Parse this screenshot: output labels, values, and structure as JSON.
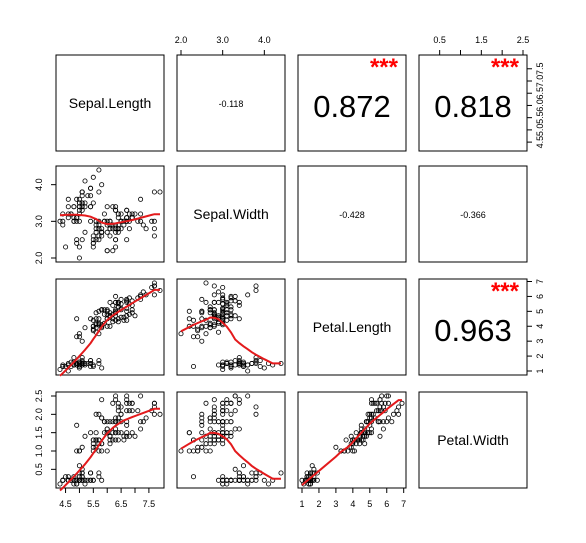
{
  "chart_data": {
    "type": "scatter",
    "variables": [
      "Sepal.Length",
      "Sepal.Width",
      "Petal.Length",
      "Petal.Width"
    ],
    "ranges": [
      [
        4.3,
        7.9
      ],
      [
        2.0,
        4.4
      ],
      [
        1.0,
        6.9
      ],
      [
        0.1,
        2.5
      ]
    ],
    "axis_ticks": {
      "Sepal.Length": [
        "4.5",
        "5.5",
        "6.5",
        "7.5"
      ],
      "Sepal.Width": [
        "2.0",
        "3.0",
        "4.0"
      ],
      "Petal.Length": [
        "1",
        "2",
        "3",
        "4",
        "5",
        "6",
        "7"
      ],
      "Petal.Width": [
        "0.5",
        "1.5",
        "2.5"
      ]
    },
    "axis_ticks_minor": {
      "Sepal.Length": [
        "4.5",
        "5.0",
        "5.5",
        "6.0",
        "6.5",
        "7.0",
        "7.5"
      ],
      "Petal.Width": [
        "0.5",
        "1.0",
        "1.5",
        "2.0",
        "2.5"
      ]
    },
    "correlations": [
      {
        "row": 0,
        "col": 1,
        "label": "-0.118",
        "stars": "",
        "big": false
      },
      {
        "row": 0,
        "col": 2,
        "label": "0.872",
        "stars": "***",
        "big": true
      },
      {
        "row": 0,
        "col": 3,
        "label": "0.818",
        "stars": "***",
        "big": true
      },
      {
        "row": 1,
        "col": 2,
        "label": "-0.428",
        "stars": "",
        "big": false
      },
      {
        "row": 1,
        "col": 3,
        "label": "-0.366",
        "stars": "",
        "big": false
      },
      {
        "row": 2,
        "col": 3,
        "label": "0.963",
        "stars": "***",
        "big": true
      }
    ],
    "points": [
      [
        5.1,
        3.5,
        1.4,
        0.2
      ],
      [
        4.9,
        3.0,
        1.4,
        0.2
      ],
      [
        4.7,
        3.2,
        1.3,
        0.2
      ],
      [
        4.6,
        3.1,
        1.5,
        0.2
      ],
      [
        5.0,
        3.6,
        1.4,
        0.2
      ],
      [
        5.4,
        3.9,
        1.7,
        0.4
      ],
      [
        4.6,
        3.4,
        1.4,
        0.3
      ],
      [
        5.0,
        3.4,
        1.5,
        0.2
      ],
      [
        4.4,
        2.9,
        1.4,
        0.2
      ],
      [
        4.9,
        3.1,
        1.5,
        0.1
      ],
      [
        5.4,
        3.7,
        1.5,
        0.2
      ],
      [
        4.8,
        3.4,
        1.6,
        0.2
      ],
      [
        4.8,
        3.0,
        1.4,
        0.1
      ],
      [
        4.3,
        3.0,
        1.1,
        0.1
      ],
      [
        5.8,
        4.0,
        1.2,
        0.2
      ],
      [
        5.7,
        4.4,
        1.5,
        0.4
      ],
      [
        5.4,
        3.9,
        1.3,
        0.4
      ],
      [
        5.1,
        3.5,
        1.4,
        0.3
      ],
      [
        5.7,
        3.8,
        1.7,
        0.3
      ],
      [
        5.1,
        3.8,
        1.5,
        0.3
      ],
      [
        5.4,
        3.4,
        1.7,
        0.2
      ],
      [
        5.1,
        3.7,
        1.5,
        0.4
      ],
      [
        4.6,
        3.6,
        1.0,
        0.2
      ],
      [
        5.1,
        3.3,
        1.7,
        0.5
      ],
      [
        4.8,
        3.4,
        1.9,
        0.2
      ],
      [
        5.0,
        3.0,
        1.6,
        0.2
      ],
      [
        5.0,
        3.4,
        1.6,
        0.4
      ],
      [
        5.2,
        3.5,
        1.5,
        0.2
      ],
      [
        5.2,
        3.4,
        1.4,
        0.2
      ],
      [
        4.7,
        3.2,
        1.6,
        0.2
      ],
      [
        4.8,
        3.1,
        1.6,
        0.2
      ],
      [
        5.4,
        3.4,
        1.5,
        0.4
      ],
      [
        5.2,
        4.1,
        1.5,
        0.1
      ],
      [
        5.5,
        4.2,
        1.4,
        0.2
      ],
      [
        4.9,
        3.1,
        1.5,
        0.2
      ],
      [
        5.0,
        3.2,
        1.2,
        0.2
      ],
      [
        5.5,
        3.5,
        1.3,
        0.2
      ],
      [
        4.9,
        3.6,
        1.4,
        0.1
      ],
      [
        4.4,
        3.0,
        1.3,
        0.2
      ],
      [
        5.1,
        3.4,
        1.5,
        0.2
      ],
      [
        5.0,
        3.5,
        1.3,
        0.3
      ],
      [
        4.5,
        2.3,
        1.3,
        0.3
      ],
      [
        4.4,
        3.2,
        1.3,
        0.2
      ],
      [
        5.0,
        3.5,
        1.6,
        0.6
      ],
      [
        5.1,
        3.8,
        1.9,
        0.4
      ],
      [
        4.8,
        3.0,
        1.4,
        0.3
      ],
      [
        5.1,
        3.8,
        1.6,
        0.2
      ],
      [
        4.6,
        3.2,
        1.4,
        0.2
      ],
      [
        5.3,
        3.7,
        1.5,
        0.2
      ],
      [
        5.0,
        3.3,
        1.4,
        0.2
      ],
      [
        7.0,
        3.2,
        4.7,
        1.4
      ],
      [
        6.4,
        3.2,
        4.5,
        1.5
      ],
      [
        6.9,
        3.1,
        4.9,
        1.5
      ],
      [
        5.5,
        2.3,
        4.0,
        1.3
      ],
      [
        6.5,
        2.8,
        4.6,
        1.5
      ],
      [
        5.7,
        2.8,
        4.5,
        1.3
      ],
      [
        6.3,
        3.3,
        4.7,
        1.6
      ],
      [
        4.9,
        2.4,
        3.3,
        1.0
      ],
      [
        6.6,
        2.9,
        4.6,
        1.3
      ],
      [
        5.2,
        2.7,
        3.9,
        1.4
      ],
      [
        5.0,
        2.0,
        3.5,
        1.0
      ],
      [
        5.9,
        3.0,
        4.2,
        1.5
      ],
      [
        6.0,
        2.2,
        4.0,
        1.0
      ],
      [
        6.1,
        2.9,
        4.7,
        1.4
      ],
      [
        5.6,
        2.9,
        3.6,
        1.3
      ],
      [
        6.7,
        3.1,
        4.4,
        1.4
      ],
      [
        5.6,
        3.0,
        4.5,
        1.5
      ],
      [
        5.8,
        2.7,
        4.1,
        1.0
      ],
      [
        6.2,
        2.2,
        4.5,
        1.5
      ],
      [
        5.6,
        2.5,
        3.9,
        1.1
      ],
      [
        5.9,
        3.2,
        4.8,
        1.8
      ],
      [
        6.1,
        2.8,
        4.0,
        1.3
      ],
      [
        6.3,
        2.5,
        4.9,
        1.5
      ],
      [
        6.1,
        2.8,
        4.7,
        1.2
      ],
      [
        6.4,
        2.9,
        4.3,
        1.3
      ],
      [
        6.6,
        3.0,
        4.4,
        1.4
      ],
      [
        6.8,
        2.8,
        4.8,
        1.4
      ],
      [
        6.7,
        3.0,
        5.0,
        1.7
      ],
      [
        6.0,
        2.9,
        4.5,
        1.5
      ],
      [
        5.7,
        2.6,
        3.5,
        1.0
      ],
      [
        5.5,
        2.4,
        3.8,
        1.1
      ],
      [
        5.5,
        2.4,
        3.7,
        1.0
      ],
      [
        5.8,
        2.7,
        3.9,
        1.2
      ],
      [
        6.0,
        2.7,
        5.1,
        1.6
      ],
      [
        5.4,
        3.0,
        4.5,
        1.5
      ],
      [
        6.0,
        3.4,
        4.5,
        1.6
      ],
      [
        6.7,
        3.1,
        4.7,
        1.5
      ],
      [
        6.3,
        2.3,
        4.4,
        1.3
      ],
      [
        5.6,
        3.0,
        4.1,
        1.3
      ],
      [
        5.5,
        2.5,
        4.0,
        1.3
      ],
      [
        5.5,
        2.6,
        4.4,
        1.2
      ],
      [
        6.1,
        3.0,
        4.6,
        1.4
      ],
      [
        5.8,
        2.6,
        4.0,
        1.2
      ],
      [
        5.0,
        2.3,
        3.3,
        1.0
      ],
      [
        5.6,
        2.7,
        4.2,
        1.3
      ],
      [
        5.7,
        3.0,
        4.2,
        1.2
      ],
      [
        5.7,
        2.9,
        4.2,
        1.3
      ],
      [
        6.2,
        2.9,
        4.3,
        1.3
      ],
      [
        5.1,
        2.5,
        3.0,
        1.1
      ],
      [
        5.7,
        2.8,
        4.1,
        1.3
      ],
      [
        6.3,
        3.3,
        6.0,
        2.5
      ],
      [
        5.8,
        2.7,
        5.1,
        1.9
      ],
      [
        7.1,
        3.0,
        5.9,
        2.1
      ],
      [
        6.3,
        2.9,
        5.6,
        1.8
      ],
      [
        6.5,
        3.0,
        5.8,
        2.2
      ],
      [
        7.6,
        3.0,
        6.6,
        2.1
      ],
      [
        4.9,
        2.5,
        4.5,
        1.7
      ],
      [
        7.3,
        2.9,
        6.3,
        1.8
      ],
      [
        6.7,
        2.5,
        5.8,
        1.8
      ],
      [
        7.2,
        3.6,
        6.1,
        2.5
      ],
      [
        6.5,
        3.2,
        5.1,
        2.0
      ],
      [
        6.4,
        2.7,
        5.3,
        1.9
      ],
      [
        6.8,
        3.0,
        5.5,
        2.1
      ],
      [
        5.7,
        2.5,
        5.0,
        2.0
      ],
      [
        5.8,
        2.8,
        5.1,
        2.4
      ],
      [
        6.4,
        3.2,
        5.3,
        2.3
      ],
      [
        6.5,
        3.0,
        5.5,
        1.8
      ],
      [
        7.7,
        3.8,
        6.7,
        2.2
      ],
      [
        7.7,
        2.6,
        6.9,
        2.3
      ],
      [
        6.0,
        2.2,
        5.0,
        1.5
      ],
      [
        6.9,
        3.2,
        5.7,
        2.3
      ],
      [
        5.6,
        2.8,
        4.9,
        2.0
      ],
      [
        7.7,
        2.8,
        6.7,
        2.0
      ],
      [
        6.3,
        2.7,
        4.9,
        1.8
      ],
      [
        6.7,
        3.3,
        5.7,
        2.1
      ],
      [
        7.2,
        3.2,
        6.0,
        1.8
      ],
      [
        6.2,
        2.8,
        4.8,
        1.8
      ],
      [
        6.1,
        3.0,
        4.9,
        1.8
      ],
      [
        6.4,
        2.8,
        5.6,
        2.1
      ],
      [
        7.2,
        3.0,
        5.8,
        1.6
      ],
      [
        7.4,
        2.8,
        6.1,
        1.9
      ],
      [
        7.9,
        3.8,
        6.4,
        2.0
      ],
      [
        6.4,
        2.8,
        5.6,
        2.2
      ],
      [
        6.3,
        2.8,
        5.1,
        1.5
      ],
      [
        6.1,
        2.6,
        5.6,
        1.4
      ],
      [
        7.7,
        3.0,
        6.1,
        2.3
      ],
      [
        6.3,
        3.4,
        5.6,
        2.4
      ],
      [
        6.4,
        3.1,
        5.5,
        1.8
      ],
      [
        6.0,
        3.0,
        4.8,
        1.8
      ],
      [
        6.9,
        3.1,
        5.4,
        2.1
      ],
      [
        6.7,
        3.1,
        5.6,
        2.4
      ],
      [
        6.9,
        3.1,
        5.1,
        2.3
      ],
      [
        5.8,
        2.7,
        5.1,
        1.9
      ],
      [
        6.8,
        3.2,
        5.9,
        2.3
      ],
      [
        6.7,
        3.3,
        5.7,
        2.5
      ],
      [
        6.7,
        3.0,
        5.2,
        2.3
      ],
      [
        6.3,
        2.5,
        5.0,
        1.9
      ],
      [
        6.5,
        3.0,
        5.2,
        2.0
      ],
      [
        6.2,
        3.4,
        5.4,
        2.3
      ],
      [
        5.9,
        3.0,
        5.1,
        1.8
      ]
    ],
    "colors": {
      "points": "#000000",
      "smooth": "#e31a1c",
      "stars": "#ff0000"
    }
  }
}
